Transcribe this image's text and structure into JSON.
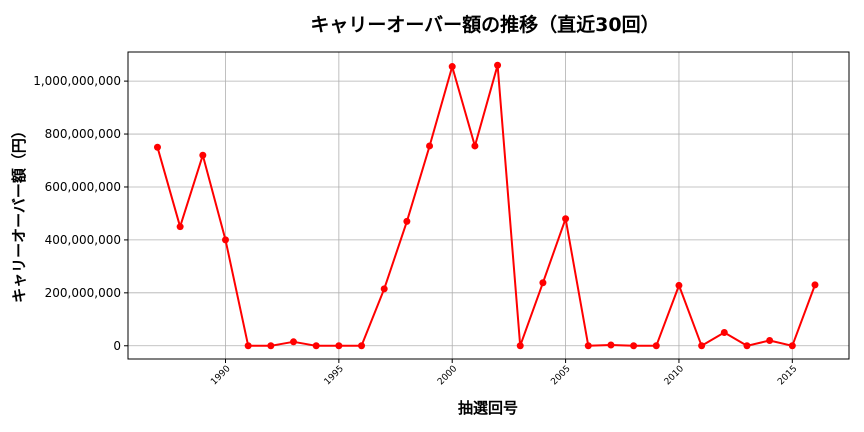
{
  "chart_data": {
    "type": "line",
    "title": "キャリーオーバー額の推移（直近30回）",
    "xlabel": "抽選回号",
    "ylabel": "キャリーオーバー額（円）",
    "grid": true,
    "xlim": [
      1985.7,
      2017.5
    ],
    "ylim": [
      -50000000,
      1110000000
    ],
    "xticks": [
      1990,
      1995,
      2000,
      2005,
      2010,
      2015
    ],
    "yticks": [
      0,
      200000000,
      400000000,
      600000000,
      800000000,
      1000000000
    ],
    "ytick_labels": [
      "0",
      "200,000,000",
      "400,000,000",
      "600,000,000",
      "800,000,000",
      "1,000,000,000"
    ],
    "series": [
      {
        "color": "#ff0000",
        "x": [
          1987,
          1988,
          1989,
          1990,
          1991,
          1992,
          1993,
          1994,
          1995,
          1996,
          1997,
          1998,
          1999,
          2000,
          2001,
          2002,
          2003,
          2004,
          2005,
          2006,
          2007,
          2008,
          2009,
          2010,
          2011,
          2012,
          2013,
          2014,
          2015,
          2016
        ],
        "y": [
          750000000,
          450000000,
          720000000,
          400000000,
          0,
          0,
          15000000,
          0,
          0,
          0,
          215000000,
          470000000,
          755000000,
          1055000000,
          755000000,
          1060000000,
          0,
          238000000,
          480000000,
          0,
          3000000,
          0,
          0,
          228000000,
          0,
          50000000,
          0,
          20000000,
          0,
          230000000
        ]
      }
    ]
  }
}
